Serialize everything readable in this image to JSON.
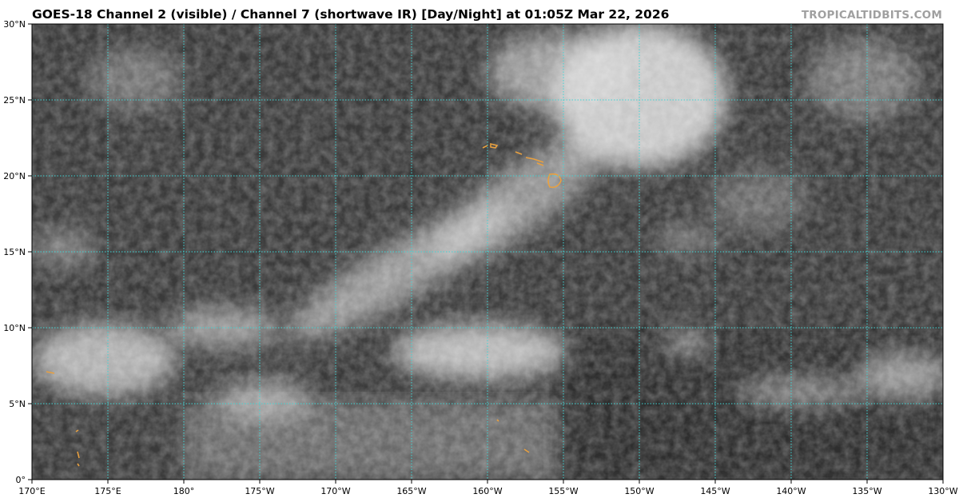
{
  "title": "GOES-18 Channel 2 (visible) / Channel 7 (shortwave IR) [Day/Night] at 01:05Z Mar 22, 2026",
  "watermark": "TROPICALTIDBITS.COM",
  "map": {
    "lon_range": [
      "170°E",
      "130°W"
    ],
    "lat_range": [
      "0°",
      "30°N"
    ],
    "gridline_color": "#3fd6d6",
    "coastline_color": "#e8a040",
    "lat_labels": [
      "30°N",
      "25°N",
      "20°N",
      "15°N",
      "10°N",
      "5°N",
      "0°"
    ],
    "lon_labels": [
      "170°E",
      "175°E",
      "180°",
      "175°W",
      "170°W",
      "165°W",
      "160°W",
      "155°W",
      "150°W",
      "145°W",
      "140°W",
      "135°W",
      "130°W"
    ]
  }
}
